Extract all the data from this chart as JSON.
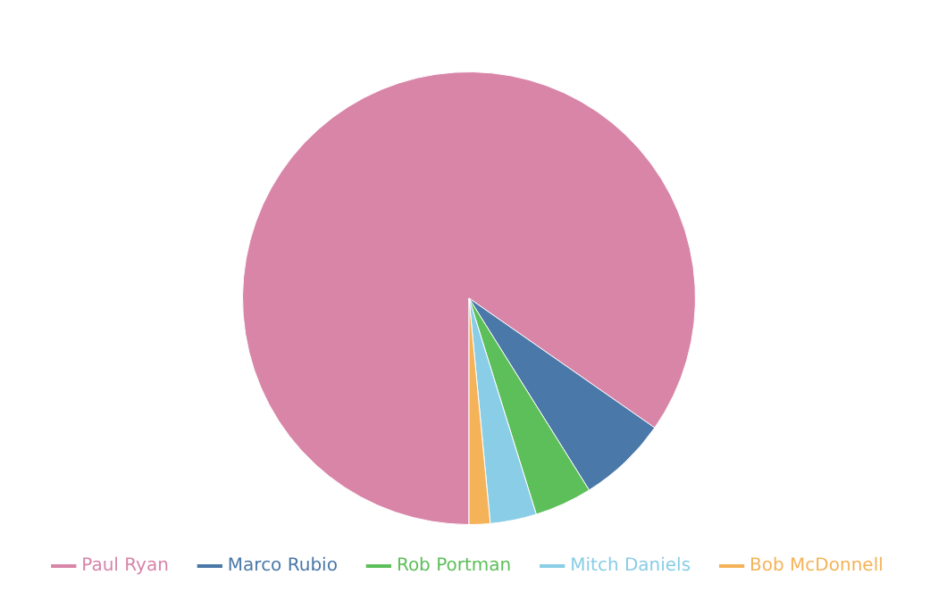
{
  "chart_data": {
    "type": "pie",
    "categories": [
      "Paul Ryan",
      "Marco Rubio",
      "Rob Portman",
      "Mitch Daniels",
      "Bob McDonnell"
    ],
    "values": [
      84.7,
      6.4,
      4.1,
      3.3,
      1.5
    ],
    "colors": [
      "#d885a8",
      "#4a78a8",
      "#5dbf5a",
      "#89cde6",
      "#f5b359"
    ],
    "legend": "bottom"
  }
}
